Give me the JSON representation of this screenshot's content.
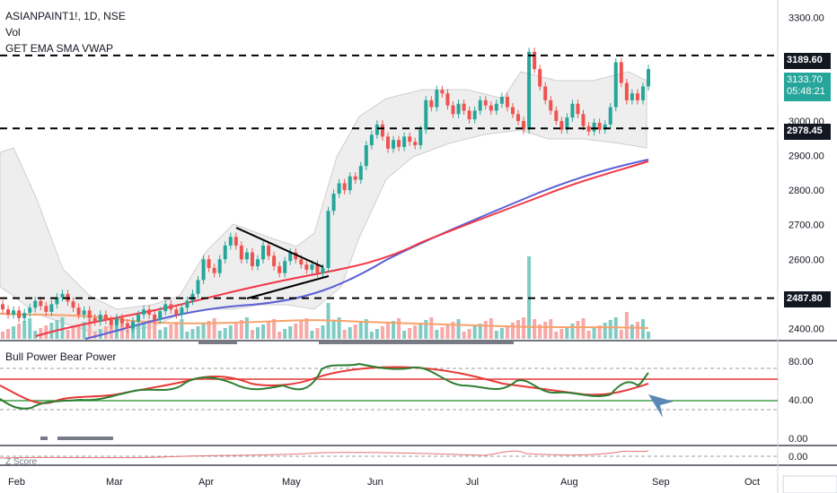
{
  "header": {
    "symbol_line": "ASIANPAINT1!, 1D, NSE",
    "volume_label": "Vol",
    "indicator_label": "GET EMA SMA VWAP"
  },
  "price_axis": {
    "ticks": [
      "3300.00",
      "3000.00",
      "2900.00",
      "2800.00",
      "2700.00",
      "2600.00",
      "2400.00"
    ]
  },
  "level_badges": {
    "resistance": "3189.60",
    "current_price": "3133.70",
    "countdown": "05:48:21",
    "middle": "2978.45",
    "support": "2487.80"
  },
  "oscillator_pane": {
    "title": "Bull Power Bear Power",
    "ticks": [
      "80.00",
      "40.00",
      "0.00"
    ]
  },
  "zscore_pane": {
    "title": "Z Score",
    "ticks": [
      "0.00"
    ]
  },
  "time_axis": {
    "labels": [
      "Feb",
      "Mar",
      "Apr",
      "May",
      "Jun",
      "Jul",
      "Aug",
      "Sep",
      "Oct"
    ]
  },
  "colors": {
    "up": "#26a69a",
    "down": "#ef5350",
    "ema_fast": "#f23645",
    "ma_slow": "#5b5fd6",
    "volume_ma": "#f7a26c",
    "bb_fill": "#eeeeee",
    "osc_green": "#2e7d32",
    "osc_red": "#e53935",
    "osc_line": "#43a047",
    "arrow": "#5b88b5"
  },
  "chart_data": {
    "type": "candlestick",
    "symbol": "ASIANPAINT1!",
    "interval": "1D",
    "exchange": "NSE",
    "y_range": [
      2370,
      3350
    ],
    "horizontal_levels": [
      3189.6,
      2978.45,
      2487.8
    ],
    "last_price": 3133.7,
    "candles": [
      {
        "o": 2470,
        "c": 2455
      },
      {
        "o": 2455,
        "c": 2440
      },
      {
        "o": 2440,
        "c": 2452
      },
      {
        "o": 2452,
        "c": 2430
      },
      {
        "o": 2430,
        "c": 2445
      },
      {
        "o": 2445,
        "c": 2460
      },
      {
        "o": 2460,
        "c": 2480
      },
      {
        "o": 2480,
        "c": 2465
      },
      {
        "o": 2465,
        "c": 2448
      },
      {
        "o": 2448,
        "c": 2470
      },
      {
        "o": 2470,
        "c": 2490
      },
      {
        "o": 2490,
        "c": 2500
      },
      {
        "o": 2500,
        "c": 2478
      },
      {
        "o": 2478,
        "c": 2460
      },
      {
        "o": 2460,
        "c": 2440
      },
      {
        "o": 2440,
        "c": 2452
      },
      {
        "o": 2452,
        "c": 2430
      },
      {
        "o": 2430,
        "c": 2420
      },
      {
        "o": 2420,
        "c": 2440
      },
      {
        "o": 2440,
        "c": 2425
      },
      {
        "o": 2425,
        "c": 2410
      },
      {
        "o": 2410,
        "c": 2430
      },
      {
        "o": 2430,
        "c": 2415
      },
      {
        "o": 2415,
        "c": 2400
      },
      {
        "o": 2400,
        "c": 2420
      },
      {
        "o": 2420,
        "c": 2440
      },
      {
        "o": 2440,
        "c": 2455
      },
      {
        "o": 2455,
        "c": 2440
      },
      {
        "o": 2440,
        "c": 2425
      },
      {
        "o": 2425,
        "c": 2450
      },
      {
        "o": 2450,
        "c": 2470
      },
      {
        "o": 2470,
        "c": 2455
      },
      {
        "o": 2455,
        "c": 2440
      },
      {
        "o": 2440,
        "c": 2460
      },
      {
        "o": 2460,
        "c": 2480
      },
      {
        "o": 2480,
        "c": 2500
      },
      {
        "o": 2500,
        "c": 2540
      },
      {
        "o": 2540,
        "c": 2600
      },
      {
        "o": 2600,
        "c": 2575
      },
      {
        "o": 2575,
        "c": 2560
      },
      {
        "o": 2560,
        "c": 2600
      },
      {
        "o": 2600,
        "c": 2640
      },
      {
        "o": 2640,
        "c": 2665
      },
      {
        "o": 2665,
        "c": 2640
      },
      {
        "o": 2640,
        "c": 2600
      },
      {
        "o": 2600,
        "c": 2620
      },
      {
        "o": 2620,
        "c": 2580
      },
      {
        "o": 2580,
        "c": 2600
      },
      {
        "o": 2600,
        "c": 2640
      },
      {
        "o": 2640,
        "c": 2610
      },
      {
        "o": 2610,
        "c": 2580
      },
      {
        "o": 2580,
        "c": 2560
      },
      {
        "o": 2560,
        "c": 2595
      },
      {
        "o": 2595,
        "c": 2620
      },
      {
        "o": 2620,
        "c": 2600
      },
      {
        "o": 2600,
        "c": 2585
      },
      {
        "o": 2585,
        "c": 2570
      },
      {
        "o": 2570,
        "c": 2585
      },
      {
        "o": 2585,
        "c": 2560
      },
      {
        "o": 2560,
        "c": 2575
      },
      {
        "o": 2575,
        "c": 2740
      },
      {
        "o": 2740,
        "c": 2790
      },
      {
        "o": 2790,
        "c": 2820
      },
      {
        "o": 2820,
        "c": 2800
      },
      {
        "o": 2800,
        "c": 2840
      },
      {
        "o": 2840,
        "c": 2830
      },
      {
        "o": 2830,
        "c": 2870
      },
      {
        "o": 2870,
        "c": 2930
      },
      {
        "o": 2930,
        "c": 2960
      },
      {
        "o": 2960,
        "c": 2990
      },
      {
        "o": 2990,
        "c": 2955
      },
      {
        "o": 2955,
        "c": 2920
      },
      {
        "o": 2920,
        "c": 2945
      },
      {
        "o": 2945,
        "c": 2925
      },
      {
        "o": 2925,
        "c": 2955
      },
      {
        "o": 2955,
        "c": 2940
      },
      {
        "o": 2940,
        "c": 2930
      },
      {
        "o": 2930,
        "c": 2975
      },
      {
        "o": 2975,
        "c": 3060
      },
      {
        "o": 3060,
        "c": 3040
      },
      {
        "o": 3040,
        "c": 3090
      },
      {
        "o": 3090,
        "c": 3080
      },
      {
        "o": 3080,
        "c": 3045
      },
      {
        "o": 3045,
        "c": 3020
      },
      {
        "o": 3020,
        "c": 3050
      },
      {
        "o": 3050,
        "c": 3030
      },
      {
        "o": 3030,
        "c": 3005
      },
      {
        "o": 3005,
        "c": 3030
      },
      {
        "o": 3030,
        "c": 3060
      },
      {
        "o": 3060,
        "c": 3045
      },
      {
        "o": 3045,
        "c": 3030
      },
      {
        "o": 3030,
        "c": 3050
      },
      {
        "o": 3050,
        "c": 3070
      },
      {
        "o": 3070,
        "c": 3040
      },
      {
        "o": 3040,
        "c": 3020
      },
      {
        "o": 3020,
        "c": 3000
      },
      {
        "o": 3000,
        "c": 2975
      },
      {
        "o": 2975,
        "c": 3200
      },
      {
        "o": 3200,
        "c": 3150
      },
      {
        "o": 3150,
        "c": 3100
      },
      {
        "o": 3100,
        "c": 3060
      },
      {
        "o": 3060,
        "c": 3030
      },
      {
        "o": 3030,
        "c": 3000
      },
      {
        "o": 3000,
        "c": 2975
      },
      {
        "o": 2975,
        "c": 3010
      },
      {
        "o": 3010,
        "c": 3050
      },
      {
        "o": 3050,
        "c": 3020
      },
      {
        "o": 3020,
        "c": 2985
      },
      {
        "o": 2985,
        "c": 2970
      },
      {
        "o": 2970,
        "c": 2995
      },
      {
        "o": 2995,
        "c": 2975
      },
      {
        "o": 2975,
        "c": 2990
      },
      {
        "o": 2990,
        "c": 3040
      },
      {
        "o": 3040,
        "c": 3170
      },
      {
        "o": 3170,
        "c": 3110
      },
      {
        "o": 3110,
        "c": 3060
      },
      {
        "o": 3060,
        "c": 3080
      },
      {
        "o": 3080,
        "c": 3060
      },
      {
        "o": 3060,
        "c": 3100
      },
      {
        "o": 3100,
        "c": 3150
      }
    ],
    "volume_max": 2620
  }
}
